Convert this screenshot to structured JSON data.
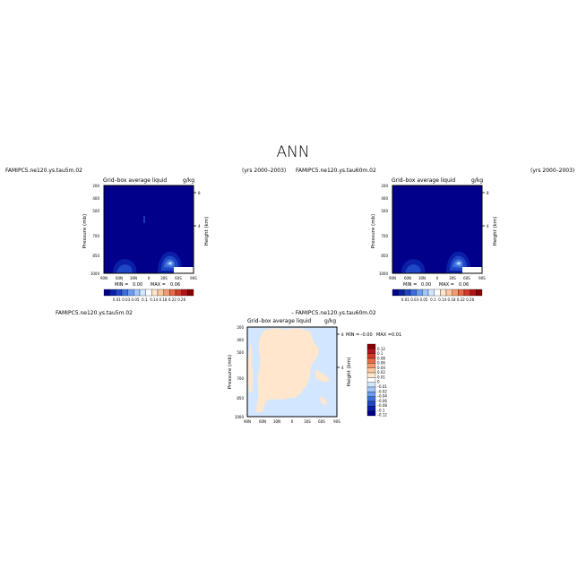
{
  "page": {
    "title": "ANN"
  },
  "panels": [
    {
      "case_label": "FAMIPC5.ne120.ys.tau5m.02",
      "years": "(yrs 2000–2003)",
      "plot_title": "Grid–box average liquid",
      "units": "g/kg",
      "stats": {
        "min_label": "MIN =",
        "min_value": "0.00",
        "max_label": "MAX =",
        "max_value": "0.06"
      }
    },
    {
      "case_label": "FAMIPC5.ne120.ys.tau60m.02",
      "years": "(yrs 2000–2003)",
      "plot_title": "Grid–box average liquid",
      "units": "g/kg",
      "stats": {
        "min_label": "MIN =",
        "min_value": "0.00",
        "max_label": "MAX =",
        "max_value": "0.06"
      }
    },
    {
      "case_label": "FAMIPC5.ne120.ys.tau5m.02",
      "diff_label": "– FAMIPC5.ne120.ys.tau60m.02",
      "plot_title": "Grid–box average liquid",
      "units": "g/kg",
      "stats": {
        "min_label": "MIN =",
        "min_value": "–0.00",
        "max_label": "MAX =",
        "max_value": "0.01"
      }
    }
  ],
  "colorbar_abs": {
    "labels": [
      "0.01",
      "0.03",
      "0.05",
      "0.1",
      "0.14",
      "0.18",
      "0.22",
      "0.26"
    ],
    "colors": [
      "#00008a",
      "#0a1fa8",
      "#1f46c4",
      "#3c6fdc",
      "#6c9cf0",
      "#a4c6fa",
      "#d2e6ff",
      "#ffffff",
      "#ffe6cc",
      "#fbc8a0",
      "#f49a70",
      "#e86a48",
      "#d23a28",
      "#b0141c",
      "#8a0000"
    ]
  },
  "colorbar_diff": {
    "labels": [
      "0.12",
      "0.1",
      "0.08",
      "0.06",
      "0.04",
      "0.02",
      "0.01",
      "0",
      "–0.01",
      "–0.02",
      "–0.04",
      "–0.06",
      "–0.08",
      "–0.1",
      "–0.12"
    ],
    "colors": [
      "#8a0000",
      "#b0141c",
      "#d23a28",
      "#e86a48",
      "#f49a70",
      "#fbc8a0",
      "#ffe6cc",
      "#ffffff",
      "#d2e6ff",
      "#a4c6fa",
      "#6c9cf0",
      "#3c6fdc",
      "#1f46c4",
      "#0a1fa8",
      "#00008a"
    ]
  },
  "chart_data": [
    {
      "type": "heatmap",
      "title": "Grid–box average liquid",
      "xlabel": "",
      "ylabel": "Pressure (mb)",
      "y2label": "Height (km)",
      "x_ticks": [
        "90N",
        "60N",
        "30N",
        "0",
        "30S",
        "60S",
        "90S"
      ],
      "y_ticks": [
        200,
        400,
        500,
        700,
        850,
        1000
      ],
      "y2_ticks": [
        8,
        4
      ],
      "ylim": [
        1000,
        200
      ],
      "min": 0.0,
      "max": 0.06
    },
    {
      "type": "heatmap",
      "title": "Grid–box average liquid",
      "xlabel": "",
      "ylabel": "Pressure (mb)",
      "y2label": "Height (km)",
      "x_ticks": [
        "90N",
        "60N",
        "30N",
        "0",
        "30S",
        "60S",
        "90S"
      ],
      "y_ticks": [
        200,
        400,
        500,
        700,
        850,
        1000
      ],
      "y2_ticks": [
        8,
        4
      ],
      "ylim": [
        1000,
        200
      ],
      "min": 0.0,
      "max": 0.06
    },
    {
      "type": "heatmap",
      "title": "Grid–box average liquid",
      "xlabel": "",
      "ylabel": "Pressure (mb)",
      "y2label": "Height (km)",
      "x_ticks": [
        "90N",
        "60N",
        "30N",
        "0",
        "30S",
        "60S",
        "90S"
      ],
      "y_ticks": [
        200,
        400,
        500,
        700,
        850,
        1000
      ],
      "y2_ticks": [
        8,
        4
      ],
      "ylim": [
        1000,
        200
      ],
      "min": -0.0,
      "max": 0.01
    }
  ]
}
